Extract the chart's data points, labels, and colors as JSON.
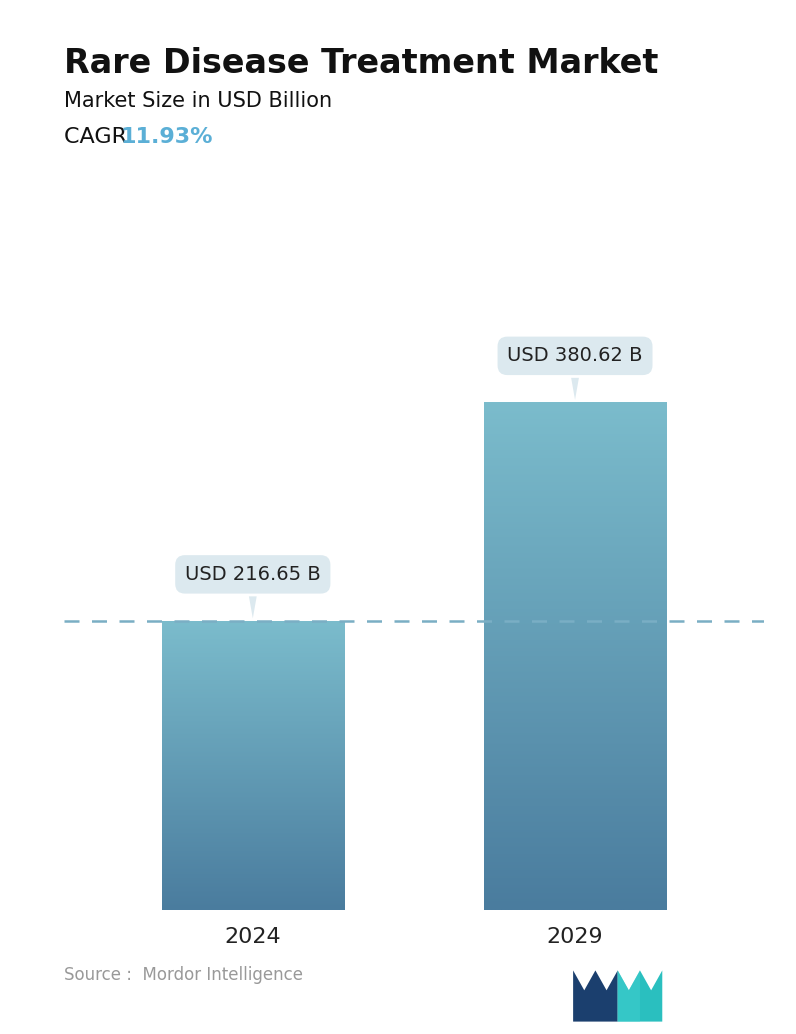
{
  "title": "Rare Disease Treatment Market",
  "subtitle": "Market Size in USD Billion",
  "cagr_label": "CAGR ",
  "cagr_value": "11.93%",
  "cagr_color": "#5BAFD6",
  "categories": [
    "2024",
    "2029"
  ],
  "values": [
    216.65,
    380.62
  ],
  "labels": [
    "USD 216.65 B",
    "USD 380.62 B"
  ],
  "bar_color_top": "#7BBCCC",
  "bar_color_bottom": "#4A7C9E",
  "bar_color_top2": "#7BBCCC",
  "bar_color_bottom2": "#4A7C9E",
  "dashed_line_color": "#7AAEC4",
  "dashed_line_value": 216.65,
  "source_text": "Source :  Mordor Intelligence",
  "source_color": "#999999",
  "background_color": "#ffffff",
  "label_box_color": "#DCE9EF",
  "label_text_color": "#222222",
  "title_fontsize": 24,
  "subtitle_fontsize": 15,
  "cagr_fontsize": 16,
  "tick_fontsize": 16,
  "label_fontsize": 14,
  "ylim": [
    0,
    450
  ]
}
